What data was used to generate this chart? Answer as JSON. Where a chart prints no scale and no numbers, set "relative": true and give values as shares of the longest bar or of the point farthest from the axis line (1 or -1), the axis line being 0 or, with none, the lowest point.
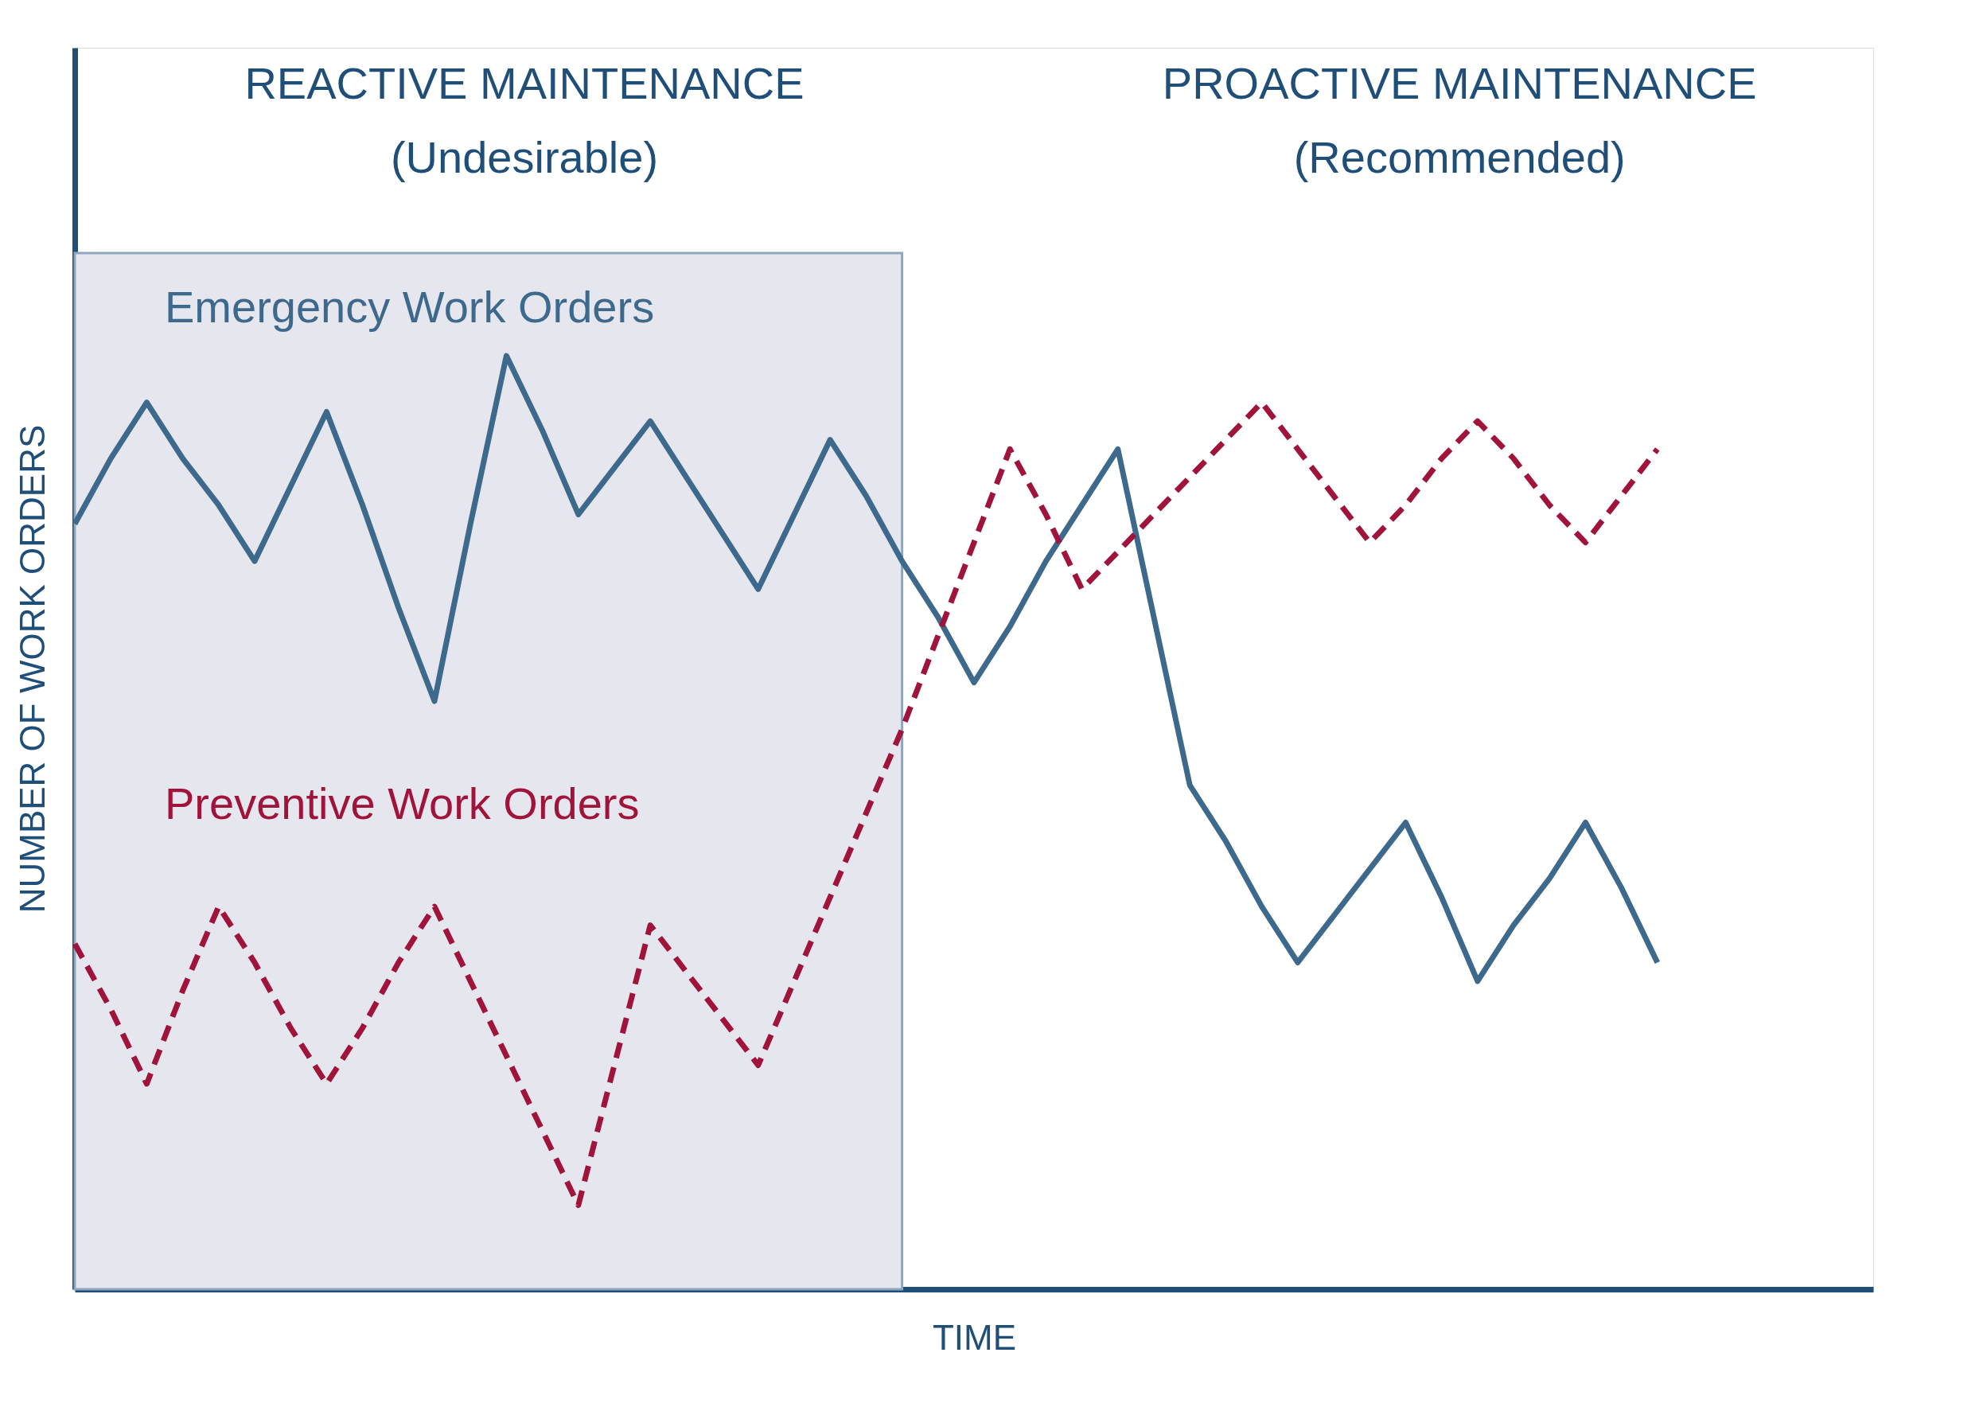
{
  "chart_data": {
    "type": "line",
    "relative": true,
    "xlabel": "TIME",
    "ylabel": "NUMBER OF WORK ORDERS",
    "tick_labels": false,
    "grid": false,
    "legend": false,
    "marker": "none",
    "categories": [
      null,
      null,
      null,
      null,
      null,
      null,
      null,
      null,
      null,
      null,
      null,
      null,
      null,
      null,
      null,
      null,
      null,
      null,
      null,
      null,
      null,
      null,
      null,
      null,
      null,
      null,
      null,
      null,
      null,
      null,
      null,
      null,
      null,
      null,
      null,
      null,
      null,
      null,
      null,
      null,
      null,
      null,
      null,
      null,
      null,
      null,
      null,
      null,
      null,
      null,
      null
    ],
    "annotations": [
      "REACTIVE MAINTENANCE",
      "(Undesirable)",
      "PROACTIVE MAINTENANCE",
      "(Recommended)"
    ],
    "series": [
      {
        "name": "Emergency Work Orders",
        "color": "#3d6a8c",
        "line_style": "solid",
        "values": [
          0.82,
          0.89,
          0.95,
          0.89,
          0.84,
          0.78,
          0.86,
          0.94,
          0.84,
          0.73,
          0.63,
          0.82,
          1.0,
          0.92,
          0.83,
          0.88,
          0.93,
          0.87,
          0.81,
          0.75,
          0.83,
          0.91,
          0.85,
          0.78,
          0.72,
          0.65,
          0.71,
          0.78,
          0.84,
          0.9,
          0.72,
          0.54,
          0.48,
          0.41,
          0.35,
          0.4,
          0.45,
          0.5,
          0.42,
          0.33,
          0.39,
          0.44,
          0.5,
          0.43,
          0.35,
          null,
          null,
          null,
          null,
          null,
          null
        ]
      },
      {
        "name": "Preventive Work Orders",
        "color": "#a0143c",
        "line_style": "dashed",
        "values": [
          0.37,
          0.3,
          0.22,
          0.32,
          0.41,
          0.35,
          0.28,
          0.22,
          0.28,
          0.35,
          0.41,
          0.33,
          0.25,
          0.17,
          0.09,
          0.24,
          0.39,
          0.34,
          0.29,
          0.24,
          0.33,
          0.42,
          0.51,
          0.6,
          0.7,
          0.8,
          0.9,
          0.83,
          0.75,
          0.79,
          0.83,
          0.87,
          0.91,
          0.95,
          0.9,
          0.85,
          0.8,
          0.84,
          0.89,
          0.93,
          0.89,
          0.84,
          0.8,
          0.85,
          0.9,
          null,
          null,
          null,
          null,
          null,
          null
        ]
      }
    ]
  }
}
